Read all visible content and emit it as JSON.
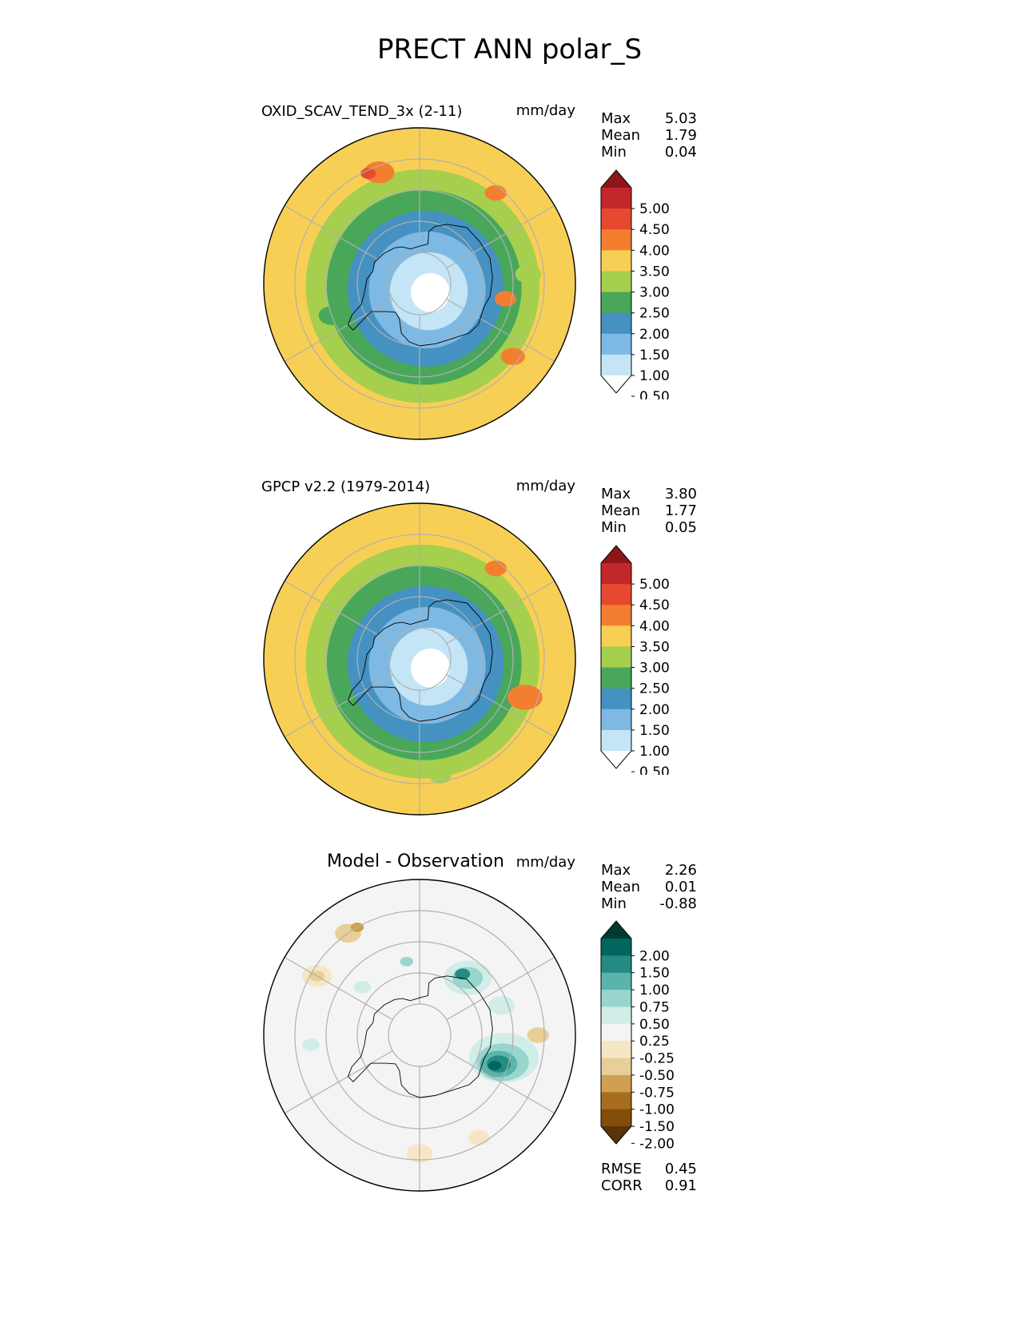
{
  "figure": {
    "title": "PRECT ANN polar_S"
  },
  "panels": [
    {
      "id": "model",
      "title": "OXID_SCAV_TEND_3x (2-11)",
      "units": "mm/day",
      "stats": [
        {
          "label": "Max",
          "value": "5.03"
        },
        {
          "label": "Mean",
          "value": "1.79"
        },
        {
          "label": "Min",
          "value": "0.04"
        }
      ],
      "colorbar": {
        "tick_labels": [
          "5.00",
          "4.50",
          "4.00",
          "3.50",
          "3.00",
          "2.50",
          "2.00",
          "1.50",
          "1.00",
          "0.50"
        ],
        "colors": [
          "#8e1518",
          "#c2272b",
          "#e64930",
          "#f47e30",
          "#f8cf55",
          "#a6cf4e",
          "#49a75a",
          "#4591c2",
          "#7db9e3",
          "#c3e5f6",
          "#ffffff"
        ]
      },
      "rings": [
        "#f8cf55",
        "#f8cf55",
        "#a6cf4e",
        "#49a75a",
        "#4591c2",
        "#7db9e3",
        "#c3e5f6",
        "#ffffff"
      ],
      "blobs": [
        {
          "color": "#f47e30",
          "lon": 200,
          "lat": -52,
          "size": 0.07
        },
        {
          "color": "#e64930",
          "lon": 205,
          "lat": -51,
          "size": 0.035
        },
        {
          "color": "#f47e30",
          "lon": 52,
          "lat": -52,
          "size": 0.055
        },
        {
          "color": "#f47e30",
          "lon": 140,
          "lat": -52,
          "size": 0.05
        },
        {
          "color": "#f47e30",
          "lon": 80,
          "lat": -62,
          "size": 0.05
        },
        {
          "color": "#a6cf4e",
          "lon": 95,
          "lat": -55,
          "size": 0.06
        },
        {
          "color": "#49a75a",
          "lon": 290,
          "lat": -60,
          "size": 0.06
        }
      ]
    },
    {
      "id": "obs",
      "title": "GPCP v2.2 (1979-2014)",
      "units": "mm/day",
      "stats": [
        {
          "label": "Max",
          "value": "3.80"
        },
        {
          "label": "Mean",
          "value": "1.77"
        },
        {
          "label": "Min",
          "value": "0.05"
        }
      ],
      "colorbar": {
        "tick_labels": [
          "5.00",
          "4.50",
          "4.00",
          "3.50",
          "3.00",
          "2.50",
          "2.00",
          "1.50",
          "1.00",
          "0.50"
        ],
        "colors": [
          "#8e1518",
          "#c2272b",
          "#e64930",
          "#f47e30",
          "#f8cf55",
          "#a6cf4e",
          "#49a75a",
          "#4591c2",
          "#7db9e3",
          "#c3e5f6",
          "#ffffff"
        ]
      },
      "rings": [
        "#f8cf55",
        "#f8cf55",
        "#a6cf4e",
        "#49a75a",
        "#4591c2",
        "#7db9e3",
        "#c3e5f6",
        "#ffffff"
      ],
      "blobs": [
        {
          "color": "#f47e30",
          "lon": 70,
          "lat": -54,
          "size": 0.08
        },
        {
          "color": "#f47e30",
          "lon": 140,
          "lat": -52,
          "size": 0.05
        },
        {
          "color": "#a6cf4e",
          "lon": 10,
          "lat": -52,
          "size": 0.05
        }
      ]
    },
    {
      "id": "diff",
      "title": "Model - Observation",
      "units": "mm/day",
      "stats": [
        {
          "label": "Max",
          "value": "2.26"
        },
        {
          "label": "Mean",
          "value": "0.01"
        },
        {
          "label": "Min",
          "value": "-0.88"
        }
      ],
      "colorbar": {
        "tick_labels": [
          "2.00",
          "1.50",
          "1.00",
          "0.75",
          "0.50",
          "0.25",
          "-0.25",
          "-0.50",
          "-0.75",
          "-1.00",
          "-1.50",
          "-2.00"
        ],
        "colors": [
          "#003b30",
          "#01665e",
          "#238b82",
          "#5ab4ac",
          "#98d5cc",
          "#d1ede8",
          "#f4f4f4",
          "#f5e7c6",
          "#e7cf97",
          "#cfa051",
          "#a86e1f",
          "#834d0a",
          "#5a3306"
        ]
      },
      "rings": [
        "#f4f4f4"
      ],
      "footer_stats": [
        {
          "label": "RMSE",
          "value": "0.45"
        },
        {
          "label": "CORR",
          "value": "0.91"
        }
      ],
      "blobs": [
        {
          "color": "#d1ede8",
          "lon": 75,
          "lat": -62,
          "size": 0.16
        },
        {
          "color": "#98d5cc",
          "lon": 72,
          "lat": -62,
          "size": 0.12
        },
        {
          "color": "#5ab4ac",
          "lon": 70,
          "lat": -63,
          "size": 0.085
        },
        {
          "color": "#238b82",
          "lon": 70,
          "lat": -63,
          "size": 0.055
        },
        {
          "color": "#01665e",
          "lon": 68,
          "lat": -64,
          "size": 0.03
        },
        {
          "color": "#d1ede8",
          "lon": 140,
          "lat": -66,
          "size": 0.11
        },
        {
          "color": "#98d5cc",
          "lon": 140,
          "lat": -66,
          "size": 0.07
        },
        {
          "color": "#238b82",
          "lon": 145,
          "lat": -66,
          "size": 0.035
        },
        {
          "color": "#d1ede8",
          "lon": 110,
          "lat": -62,
          "size": 0.06
        },
        {
          "color": "#e7cf97",
          "lon": 215,
          "lat": -50,
          "size": 0.06
        },
        {
          "color": "#cfa051",
          "lon": 210,
          "lat": -50,
          "size": 0.03
        },
        {
          "color": "#f5e7c6",
          "lon": 240,
          "lat": -52,
          "size": 0.07
        },
        {
          "color": "#e7cf97",
          "lon": 240,
          "lat": -52,
          "size": 0.035
        },
        {
          "color": "#f5e7c6",
          "lon": 0,
          "lat": -52,
          "size": 0.06
        },
        {
          "color": "#e7cf97",
          "lon": 90,
          "lat": -52,
          "size": 0.05
        },
        {
          "color": "#f5e7c6",
          "lon": 30,
          "lat": -52,
          "size": 0.05
        },
        {
          "color": "#d1ede8",
          "lon": 275,
          "lat": -55,
          "size": 0.04
        },
        {
          "color": "#98d5cc",
          "lon": 190,
          "lat": -66,
          "size": 0.03
        },
        {
          "color": "#d1ede8",
          "lon": 230,
          "lat": -66,
          "size": 0.04
        }
      ]
    }
  ]
}
